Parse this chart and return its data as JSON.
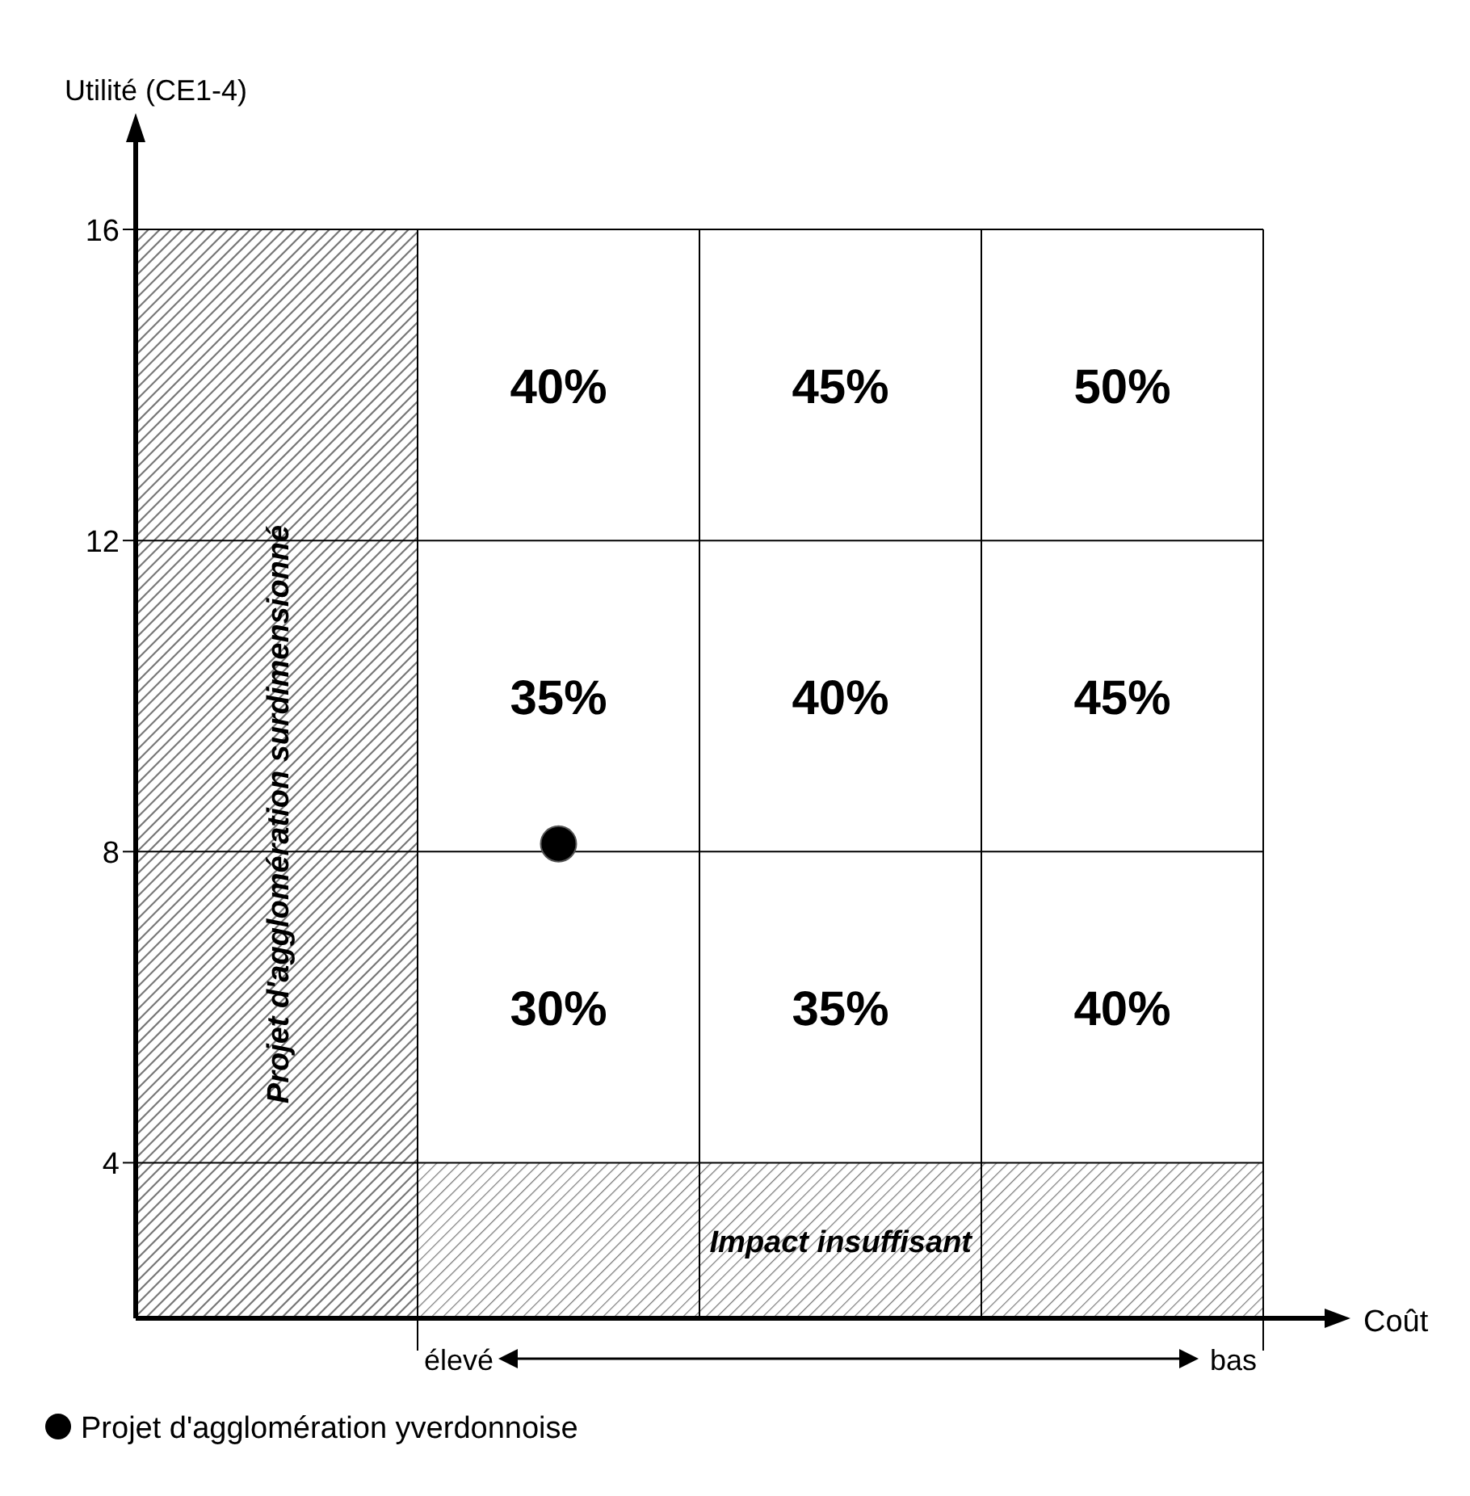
{
  "chart_data": {
    "type": "scatter",
    "ylabel": "Utilité (CE1-4)",
    "xlabel": "Coût",
    "categories": [
      null,
      null,
      null,
      null
    ],
    "ylim": [
      2,
      16
    ],
    "yticks": [
      4,
      8,
      12,
      16
    ],
    "grid": true,
    "legend": "bottom left",
    "marker": "circle",
    "series": [
      {
        "name": "Projet d'agglomération yverdonnoise",
        "color": "#000000",
        "values": [
          null,
          8.1,
          null,
          null
        ]
      }
    ],
    "bands": [
      {
        "axis": "y",
        "from": 2,
        "to": 4,
        "label": "Impact insuffisant"
      }
    ],
    "annotations": [
      "40%",
      "45%",
      "50%",
      "35%",
      "40%",
      "45%",
      "30%",
      "35%",
      "40%",
      "élevé",
      "bas",
      "Projet d'agglomération surdimensionné"
    ]
  }
}
